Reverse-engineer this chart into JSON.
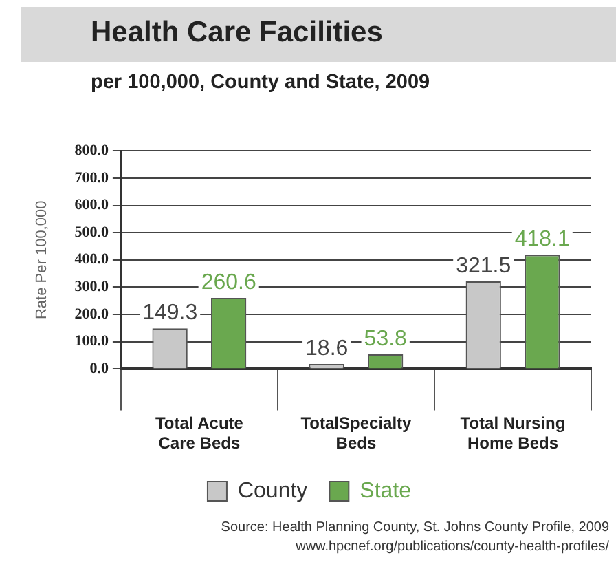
{
  "chart_data": {
    "type": "bar",
    "title": "Health Care Facilities",
    "subtitle": "per 100,000, County and State, 2009",
    "ylabel": "Rate Per 100,000",
    "categories": [
      "Total Acute Care Beds",
      "TotalSpecialty Beds",
      "Total Nursing Home Beds"
    ],
    "series": [
      {
        "name": "County",
        "color": "#c8c8c8",
        "values": [
          149.3,
          18.6,
          321.5
        ]
      },
      {
        "name": "State",
        "color": "#6aa84f",
        "values": [
          260.6,
          53.8,
          418.1
        ]
      }
    ],
    "ylim": [
      0,
      800
    ],
    "yticks": [
      {
        "value": 0,
        "label": "0.0"
      },
      {
        "value": 100,
        "label": "100.0"
      },
      {
        "value": 200,
        "label": "200.0"
      },
      {
        "value": 300,
        "label": "300.0"
      },
      {
        "value": 400,
        "label": "400.0"
      },
      {
        "value": 500,
        "label": "500.0"
      },
      {
        "value": 600,
        "label": "600.0"
      },
      {
        "value": 700,
        "label": "700.0"
      },
      {
        "value": 800,
        "label": "800.0"
      }
    ],
    "grid": "y",
    "legend": "bottom",
    "data_labels": true,
    "annotations": [
      "Source: Health Planning County, St. Johns County Profile, 2009",
      "www.hpcnef.org/publications/county-health-profiles/"
    ]
  }
}
